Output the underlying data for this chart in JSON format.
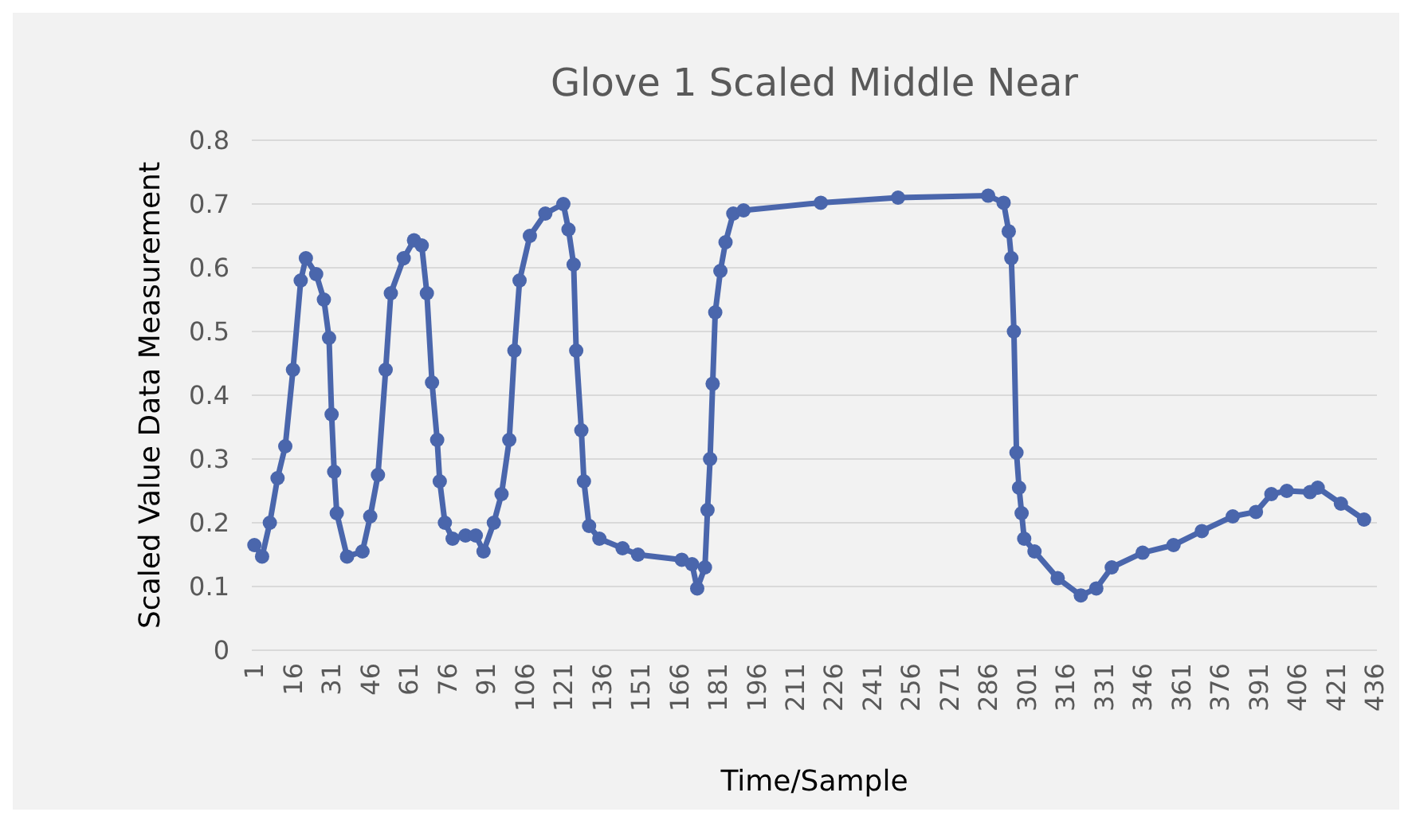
{
  "chart_data": {
    "type": "line",
    "title": "Glove 1 Scaled Middle Near",
    "xlabel": "Time/Sample",
    "ylabel": "Scaled Value Data Measurement",
    "x": [
      1,
      4,
      7,
      10,
      13,
      16,
      19,
      21,
      25,
      28,
      30,
      31,
      32,
      33,
      37,
      43,
      46,
      49,
      52,
      54,
      59,
      63,
      66,
      68,
      70,
      72,
      73,
      75,
      78,
      83,
      87,
      90,
      94,
      97,
      100,
      102,
      104,
      108,
      114,
      121,
      123,
      125,
      126,
      128,
      129,
      131,
      135,
      144,
      150,
      167,
      171,
      173,
      176,
      177,
      178,
      179,
      180,
      182,
      184,
      187,
      191,
      221,
      251,
      286,
      292,
      294,
      295,
      296,
      297,
      298,
      299,
      300,
      304,
      313,
      322,
      328,
      334,
      346,
      358,
      369,
      381,
      390,
      396,
      402,
      411,
      414,
      423,
      432
    ],
    "series": [
      {
        "color": "#4a66ac",
        "values": [
          0.165,
          0.147,
          0.2,
          0.27,
          0.32,
          0.44,
          0.58,
          0.615,
          0.59,
          0.55,
          0.49,
          0.37,
          0.28,
          0.215,
          0.147,
          0.155,
          0.21,
          0.275,
          0.44,
          0.56,
          0.615,
          0.643,
          0.635,
          0.56,
          0.42,
          0.33,
          0.265,
          0.2,
          0.175,
          0.18,
          0.18,
          0.155,
          0.2,
          0.245,
          0.33,
          0.47,
          0.58,
          0.65,
          0.685,
          0.7,
          0.66,
          0.605,
          0.47,
          0.345,
          0.265,
          0.195,
          0.175,
          0.16,
          0.15,
          0.142,
          0.135,
          0.097,
          0.13,
          0.22,
          0.3,
          0.418,
          0.53,
          0.595,
          0.64,
          0.685,
          0.69,
          0.702,
          0.71,
          0.713,
          0.702,
          0.657,
          0.615,
          0.5,
          0.31,
          0.255,
          0.215,
          0.175,
          0.155,
          0.113,
          0.086,
          0.097,
          0.13,
          0.153,
          0.165,
          0.187,
          0.21,
          0.217,
          0.245,
          0.25,
          0.248,
          0.255,
          0.23,
          0.205
        ]
      }
    ],
    "xlim": [
      0,
      437
    ],
    "xticks": [
      1,
      16,
      31,
      46,
      61,
      76,
      91,
      106,
      121,
      136,
      151,
      166,
      181,
      196,
      211,
      226,
      241,
      256,
      271,
      286,
      301,
      316,
      331,
      346,
      361,
      376,
      391,
      406,
      421,
      436
    ],
    "ylim": [
      0,
      0.8
    ],
    "yticks": [
      0,
      {
        "value": 0.1,
        "label": "0.1"
      },
      {
        "value": 0.2,
        "label": "0.2"
      },
      {
        "value": 0.3,
        "label": "0.3"
      },
      {
        "value": 0.4,
        "label": "0.4"
      },
      {
        "value": 0.5,
        "label": "0.5"
      },
      {
        "value": 0.6,
        "label": "0.6"
      },
      {
        "value": 0.7,
        "label": "0.7"
      },
      {
        "value": 0.8,
        "label": "0.8"
      }
    ],
    "grid": "y",
    "marker": "circle",
    "line_style": "solid"
  }
}
